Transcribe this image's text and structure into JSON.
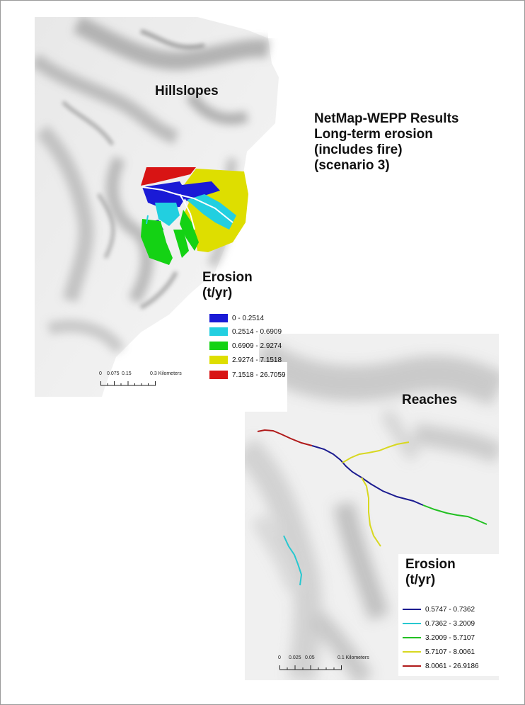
{
  "main_title": [
    "NetMap-WEPP Results",
    "Long-term erosion",
    "(includes fire)",
    "(scenario 3)"
  ],
  "hillslopes": {
    "title": "Hillslopes",
    "legend_title": [
      "Erosion",
      "(t/yr)"
    ],
    "legend": [
      {
        "label": "0 - 0.2514",
        "color": "#1a1ad6"
      },
      {
        "label": "0.2514 - 0.6909",
        "color": "#22cfe0"
      },
      {
        "label": "0.6909 - 2.9274",
        "color": "#14d214"
      },
      {
        "label": "2.9274 - 7.1518",
        "color": "#dede00"
      },
      {
        "label": "7.1518 - 26.7059",
        "color": "#d81414"
      }
    ],
    "scale": {
      "ticks": [
        "0",
        "0.075",
        "0.15",
        "0.3 Kilometers"
      ]
    }
  },
  "reaches": {
    "title": "Reaches",
    "legend_title": [
      "Erosion",
      "(t/yr)"
    ],
    "legend": [
      {
        "label": "0.5747 - 0.7362",
        "color": "#1c1c90"
      },
      {
        "label": "0.7362 - 3.2009",
        "color": "#28c8d0"
      },
      {
        "label": "3.2009 - 5.7107",
        "color": "#22c022"
      },
      {
        "label": "5.7107 - 8.0061",
        "color": "#d8d820"
      },
      {
        "label": "8.0061 - 26.9186",
        "color": "#b01a1a"
      }
    ],
    "scale": {
      "ticks": [
        "0",
        "0.025",
        "0.05",
        "0.1 Kilometers"
      ]
    }
  }
}
